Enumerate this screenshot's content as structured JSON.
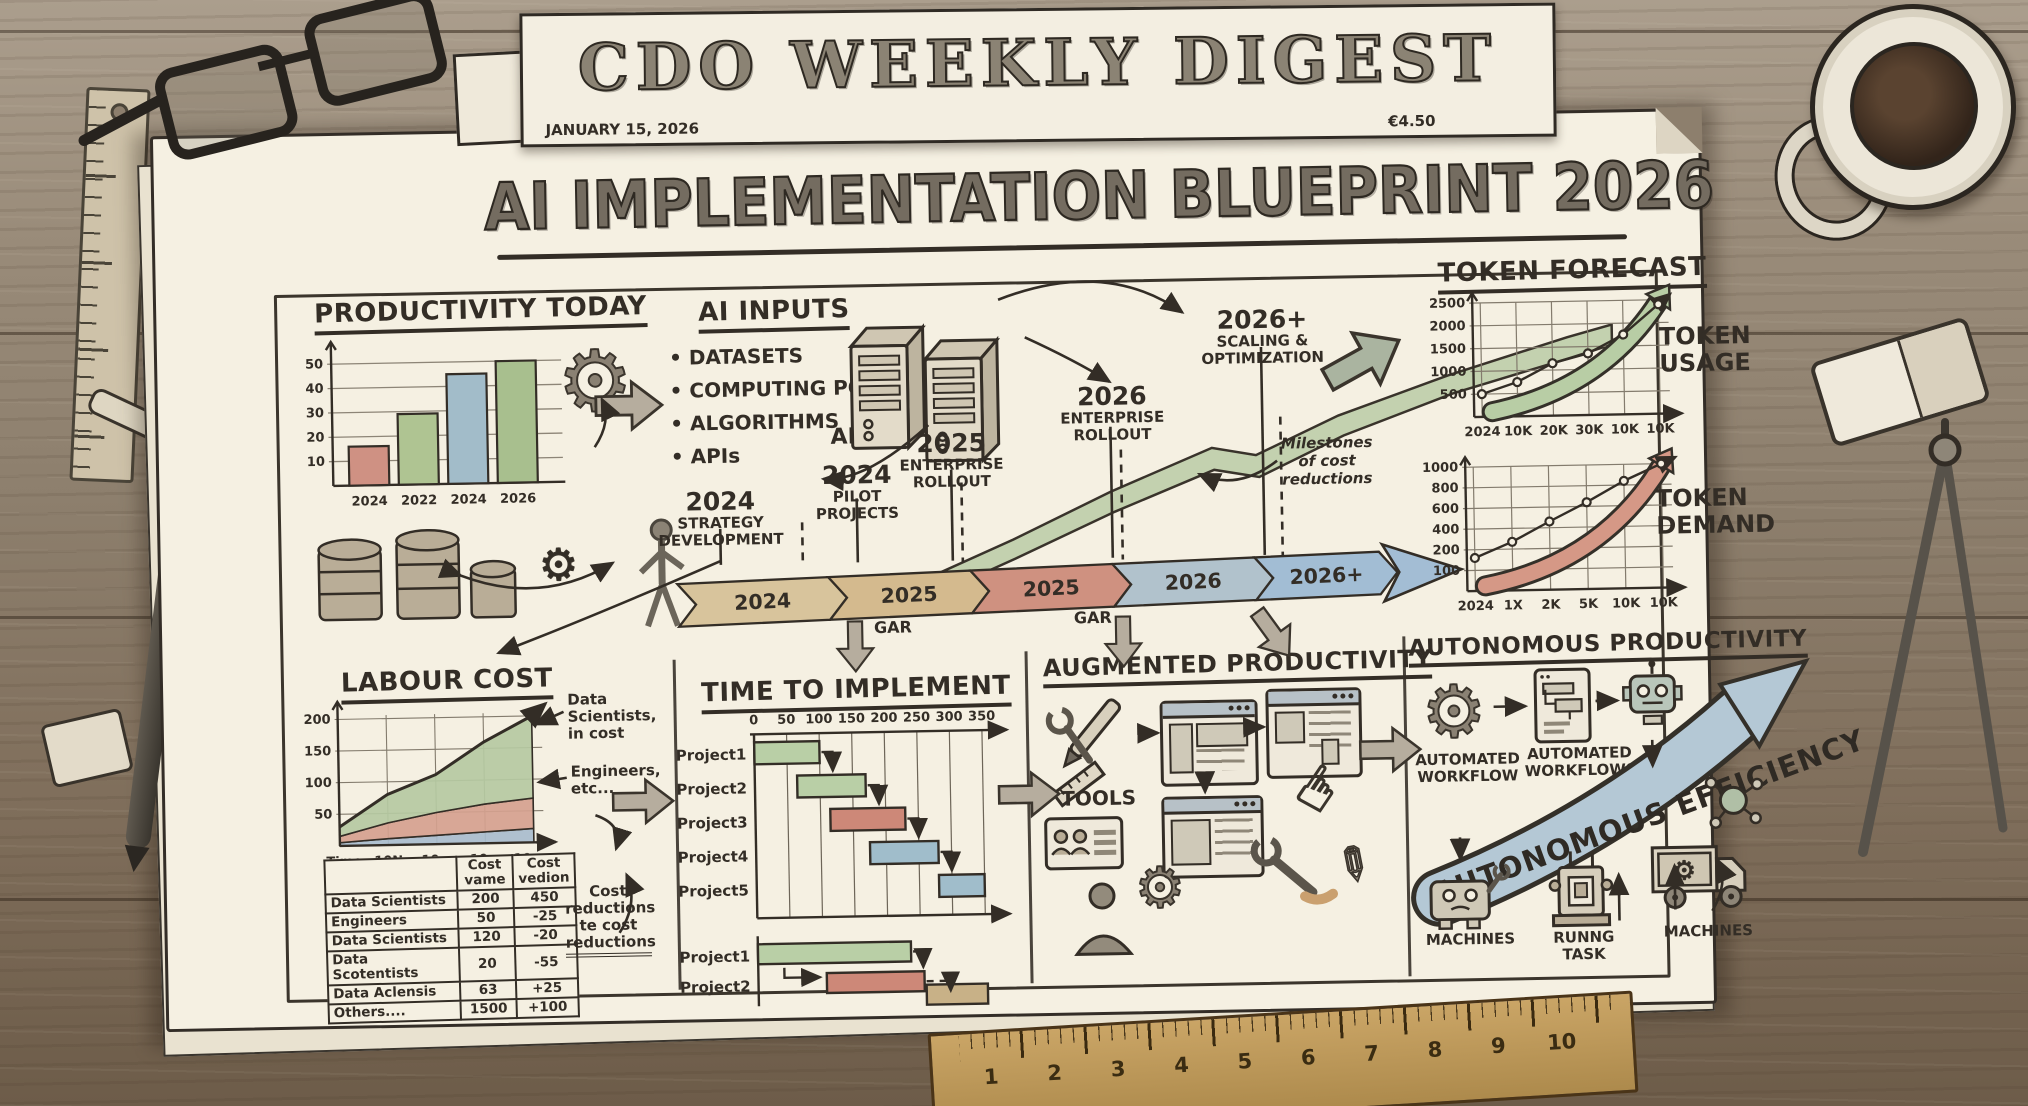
{
  "masthead": {
    "title": "CDO WEEKLY DIGEST",
    "date": "JANUARY 15, 2026",
    "price": "€4.50"
  },
  "main_title": "AI IMPLEMENTATION BLUEPRINT 2026",
  "productivity": {
    "title": "PRODUCTIVITY TODAY"
  },
  "ai_inputs": {
    "title": "AI INPUTS",
    "items": [
      "DATASETS",
      "COMPUTING POWER",
      "ALGORITHMS",
      "APIs"
    ],
    "floating_label": "APIs"
  },
  "timeline": {
    "milestones": [
      {
        "year": "2024",
        "label": "STRATEGY DEVELOPMENT"
      },
      {
        "year": "2024",
        "label": "PILOT PROJECTS"
      },
      {
        "year": "2025",
        "label": "ENTERPRISE ROLLOUT"
      },
      {
        "year": "2026",
        "label": "ENTERPRISE ROLLOUT"
      },
      {
        "year": "2026+",
        "label": "SCALING & OPTIMIZATION"
      }
    ],
    "segments": [
      {
        "label": "2024",
        "color": "#d8c49c"
      },
      {
        "label": "2025",
        "color": "#d4ba8e"
      },
      {
        "label": "2025",
        "color": "#cf9180"
      },
      {
        "label": "2026",
        "color": "#b1c2cc"
      },
      {
        "label": "2026+",
        "color": "#a2bdd4"
      }
    ],
    "sub_labels": [
      "GAR",
      "GAR"
    ],
    "annotation": "Milestones of cost reductions"
  },
  "token_forecast": {
    "title": "TOKEN FORECAST",
    "usage_label": "TOKEN USAGE",
    "demand_label": "TOKEN DEMAND"
  },
  "labour_cost": {
    "title": "LABOUR COST",
    "label_top": "Data Scientists, in cost",
    "label_mid": "Engineers, etc...",
    "note": "Cost reductions te cost reductions",
    "table": {
      "headers": [
        "",
        "Cost vame",
        "Cost vedion"
      ],
      "rows": [
        [
          "Data Scientists",
          "200",
          "450"
        ],
        [
          "Engineers",
          "50",
          "-25"
        ],
        [
          "Data Scientists",
          "120",
          "-20"
        ],
        [
          "Data Scotentists",
          "20",
          "-55"
        ],
        [
          "Data Aclensis",
          "63",
          "+25"
        ],
        [
          "Others....",
          "1500",
          "+100"
        ]
      ]
    }
  },
  "time_to_implement": {
    "title": "TIME TO IMPLEMENT"
  },
  "augmented": {
    "title": "AUGMENTED PRODUCTIVITY",
    "tools_label": "TOOLS"
  },
  "autonomous": {
    "title": "AUTONOMOUS PRODUCTIVITY",
    "step1": "AUTOMATED WORKFLOW",
    "step2": "AUTOMATED WORKFLOWS",
    "banner": "AUTONOMOUS EFFICIENCY",
    "bottom": [
      "MACHINES",
      "RUNNG TASK",
      "MACHINES"
    ]
  },
  "desk": {
    "ruler_numbers": [
      "1",
      "2",
      "3",
      "4",
      "5",
      "6",
      "7",
      "8",
      "9",
      "10"
    ]
  },
  "chart_data": [
    {
      "id": "productivity_bars",
      "type": "bar",
      "title": "PRODUCTIVITY TODAY",
      "categories": [
        "2024",
        "2022",
        "2024",
        "2026"
      ],
      "values": [
        16,
        29,
        45,
        50
      ],
      "colors": [
        "#cf9183",
        "#afc492",
        "#a2bcc9",
        "#a8bf8e"
      ],
      "yticks": [
        50,
        40,
        30,
        20,
        10
      ],
      "ylim": [
        0,
        55
      ]
    },
    {
      "id": "token_usage",
      "type": "line",
      "title": "TOKEN USAGE",
      "x": [
        "2024",
        "10K",
        "20K",
        "30K",
        "10K",
        "10K"
      ],
      "values": [
        500,
        750,
        1150,
        1350,
        1750,
        2400
      ],
      "yticks": [
        2500,
        2000,
        1500,
        1000,
        500
      ],
      "ylim": [
        0,
        2700
      ],
      "arrow_color": "#b8cda5"
    },
    {
      "id": "token_demand",
      "type": "line",
      "title": "TOKEN DEMAND",
      "x": [
        "2024",
        "1X",
        "2K",
        "5K",
        "10K",
        "10K"
      ],
      "values": [
        160,
        270,
        460,
        640,
        840,
        1000
      ],
      "yticks": [
        1000,
        800,
        600,
        400,
        200,
        100
      ],
      "ylim": [
        0,
        1050
      ],
      "arrow_color": "#d59886"
    },
    {
      "id": "labour_cost_area",
      "type": "area",
      "title": "LABOUR COST",
      "x": [
        "Time",
        "10N",
        "10m",
        "10m",
        "10urs"
      ],
      "yticks": [
        200,
        150,
        100,
        50
      ],
      "ylim": [
        0,
        215
      ],
      "series": [
        {
          "name": "blue-band",
          "color": "#a8bccd",
          "values": [
            5,
            10,
            14,
            18,
            22
          ]
        },
        {
          "name": "red-band",
          "color": "#d5a18f",
          "values": [
            10,
            25,
            36,
            44,
            48
          ]
        },
        {
          "name": "green-band",
          "color": "#b5c9a2",
          "values": [
            15,
            45,
            60,
            98,
            130
          ]
        }
      ]
    },
    {
      "id": "implementation_gantt",
      "type": "gantt",
      "title": "TIME TO IMPLEMENT",
      "xticks": [
        0,
        50,
        100,
        150,
        200,
        250,
        300,
        350
      ],
      "xlim": [
        0,
        370
      ],
      "tasks": [
        {
          "name": "Project1",
          "start": 0,
          "end": 100,
          "color": "#b9cfa6"
        },
        {
          "name": "Project2",
          "start": 65,
          "end": 170,
          "color": "#b9cfa6"
        },
        {
          "name": "Project3",
          "start": 115,
          "end": 230,
          "color": "#cd8878"
        },
        {
          "name": "Project4",
          "start": 175,
          "end": 280,
          "color": "#a0bdcb"
        },
        {
          "name": "Project5",
          "start": 280,
          "end": 350,
          "color": "#a0bdcb"
        }
      ],
      "tasks_phase2": [
        {
          "name": "Project1",
          "start": 0,
          "end": 235,
          "color": "#b9cfa6",
          "row": 0
        },
        {
          "name": "Project2",
          "start": 105,
          "end": 255,
          "color": "#cd8878",
          "row": 1
        },
        {
          "name": "",
          "start": 258,
          "end": 352,
          "color": "#c8b187",
          "row": 1.45
        }
      ]
    }
  ]
}
